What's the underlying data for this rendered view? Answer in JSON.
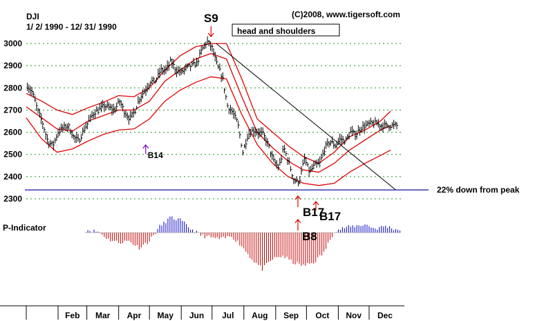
{
  "chart_data": {
    "type": "line",
    "header": {
      "symbol": "DJI",
      "date_range": "1/ 2/ 1990 - 12/ 31/ 1990",
      "credit": "(C)2008, www.tigersoft.com"
    },
    "price_panel": {
      "ylim": [
        2300,
        3050
      ],
      "yticks": [
        2300,
        2400,
        2500,
        2600,
        2700,
        2800,
        2900,
        3000
      ],
      "x_months": [
        "Feb",
        "Mar",
        "Apr",
        "May",
        "Jun",
        "Jul",
        "Aug",
        "Sep",
        "Oct",
        "Nov",
        "Dec"
      ],
      "series": [
        {
          "role": "price",
          "x": [
            1,
            6,
            11,
            16,
            21,
            26,
            31,
            36,
            41,
            46,
            51,
            56,
            61,
            66,
            71,
            76,
            81,
            86,
            91,
            96,
            101,
            106,
            111,
            116,
            121,
            126,
            131,
            136,
            141,
            146,
            151,
            156,
            161,
            166,
            171,
            176,
            181,
            186,
            191,
            196,
            201,
            206,
            211,
            216,
            221,
            226,
            231,
            236,
            241,
            246,
            251,
            256,
            261,
            266,
            271,
            276,
            281,
            286,
            291,
            296,
            301,
            306,
            311,
            316,
            321,
            326,
            331,
            336,
            341,
            346,
            351,
            356,
            361
          ],
          "values": [
            2810,
            2780,
            2700,
            2640,
            2560,
            2540,
            2600,
            2620,
            2630,
            2580,
            2560,
            2610,
            2650,
            2690,
            2700,
            2720,
            2710,
            2700,
            2740,
            2690,
            2660,
            2700,
            2760,
            2790,
            2830,
            2830,
            2880,
            2880,
            2920,
            2880,
            2870,
            2890,
            2900,
            2910,
            2970,
            3010,
            2980,
            2900,
            2850,
            2720,
            2690,
            2640,
            2510,
            2590,
            2610,
            2600,
            2590,
            2540,
            2470,
            2440,
            2530,
            2460,
            2380,
            2380,
            2480,
            2420,
            2450,
            2460,
            2530,
            2560,
            2540,
            2570,
            2560,
            2600,
            2590,
            2620,
            2630,
            2640,
            2640,
            2630,
            2630,
            2630,
            2630
          ]
        },
        {
          "role": "upper-band",
          "x": [
            0,
            15,
            30,
            45,
            60,
            75,
            90,
            105,
            120,
            135,
            150,
            165,
            180,
            195,
            210,
            225,
            240,
            255,
            270,
            285,
            300,
            315,
            330,
            345,
            355
          ],
          "values": [
            2775,
            2740,
            2700,
            2680,
            2710,
            2735,
            2765,
            2760,
            2800,
            2880,
            2945,
            2985,
            3000,
            3000,
            2840,
            2660,
            2600,
            2540,
            2490,
            2460,
            2510,
            2580,
            2610,
            2650,
            2695
          ]
        },
        {
          "role": "middle-band",
          "x": [
            0,
            15,
            30,
            45,
            60,
            75,
            90,
            105,
            120,
            135,
            150,
            165,
            180,
            195,
            210,
            225,
            240,
            255,
            270,
            285,
            300,
            315,
            330,
            345,
            355
          ],
          "values": [
            2715,
            2665,
            2615,
            2605,
            2650,
            2675,
            2700,
            2700,
            2740,
            2830,
            2880,
            2930,
            2955,
            2930,
            2760,
            2600,
            2530,
            2470,
            2430,
            2420,
            2460,
            2520,
            2565,
            2610,
            2630
          ]
        },
        {
          "role": "lower-band",
          "x": [
            0,
            15,
            30,
            45,
            60,
            75,
            90,
            105,
            120,
            135,
            150,
            165,
            180,
            195,
            210,
            225,
            240,
            255,
            270,
            285,
            300,
            315,
            330,
            345,
            355
          ],
          "values": [
            2665,
            2570,
            2510,
            2525,
            2560,
            2590,
            2610,
            2615,
            2660,
            2740,
            2790,
            2825,
            2850,
            2840,
            2680,
            2545,
            2460,
            2400,
            2370,
            2360,
            2370,
            2420,
            2460,
            2495,
            2520
          ]
        }
      ],
      "trendline": {
        "from": [
          185,
          3000
        ],
        "to": [
          360,
          2340
        ]
      },
      "peak_line_value": 2340,
      "annotations": [
        {
          "text": "S9",
          "x": 180,
          "type": "sell"
        },
        {
          "text": "head and shoulders",
          "x": 188,
          "boxed": true
        },
        {
          "text": "B14",
          "x": 117,
          "type": "buy"
        },
        {
          "text": "22% down from peak",
          "x": 362
        },
        {
          "text": "B17",
          "x": 248,
          "type": "buy"
        },
        {
          "text": "B17",
          "x": 260,
          "type": "buy"
        },
        {
          "text": "B8",
          "x": 247,
          "type": "buy"
        }
      ]
    },
    "indicator_panel": {
      "label": "P-Indicator",
      "x": [
        0,
        10,
        20,
        30,
        40,
        50,
        60,
        70,
        80,
        90,
        100,
        110,
        120,
        130,
        140,
        150,
        160,
        170,
        180,
        190,
        200,
        210,
        220,
        230,
        240,
        250,
        260,
        270,
        280,
        290,
        300,
        310,
        320,
        330,
        340,
        350,
        360
      ],
      "values": [
        -30,
        -45,
        -40,
        -20,
        -10,
        5,
        8,
        3,
        -20,
        -30,
        -25,
        -45,
        -25,
        18,
        45,
        38,
        12,
        -8,
        -15,
        -20,
        -10,
        -40,
        -80,
        -110,
        -80,
        -70,
        -90,
        -100,
        -90,
        -60,
        5,
        15,
        20,
        25,
        12,
        20,
        10
      ]
    }
  }
}
